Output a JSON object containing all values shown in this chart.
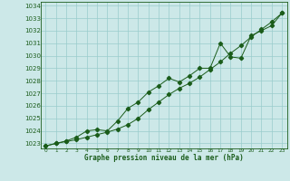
{
  "title": "Graphe pression niveau de la mer (hPa)",
  "bg_color": "#cce8e8",
  "grid_color": "#99cccc",
  "line_color": "#1a5c1a",
  "x_ticks": [
    0,
    1,
    2,
    3,
    4,
    5,
    6,
    7,
    8,
    9,
    10,
    11,
    12,
    13,
    14,
    15,
    16,
    17,
    18,
    19,
    20,
    21,
    22,
    23
  ],
  "y_ticks": [
    1023,
    1024,
    1025,
    1026,
    1027,
    1028,
    1029,
    1030,
    1031,
    1032,
    1033,
    1034
  ],
  "ylim": [
    1022.6,
    1034.3
  ],
  "xlim": [
    -0.5,
    23.5
  ],
  "line1_x": [
    0,
    1,
    2,
    3,
    4,
    5,
    6,
    7,
    8,
    9,
    10,
    11,
    12,
    13,
    14,
    15,
    16,
    17,
    18,
    19,
    20,
    21,
    22,
    23
  ],
  "line1_y": [
    1022.8,
    1023.0,
    1023.15,
    1023.3,
    1023.5,
    1023.7,
    1023.9,
    1024.15,
    1024.5,
    1025.0,
    1025.7,
    1026.3,
    1026.9,
    1027.4,
    1027.8,
    1028.3,
    1028.9,
    1029.5,
    1030.2,
    1030.8,
    1031.5,
    1032.1,
    1032.7,
    1033.4
  ],
  "line2_x": [
    0,
    1,
    2,
    3,
    4,
    5,
    6,
    7,
    8,
    9,
    10,
    11,
    12,
    13,
    14,
    15,
    16,
    17,
    18,
    19,
    20,
    21,
    22,
    23
  ],
  "line2_y": [
    1022.8,
    1023.0,
    1023.2,
    1023.5,
    1024.0,
    1024.1,
    1024.0,
    1024.8,
    1025.8,
    1026.3,
    1027.1,
    1027.6,
    1028.2,
    1027.9,
    1028.4,
    1029.0,
    1029.0,
    1031.0,
    1029.9,
    1029.8,
    1031.6,
    1032.0,
    1032.4,
    1033.4
  ]
}
